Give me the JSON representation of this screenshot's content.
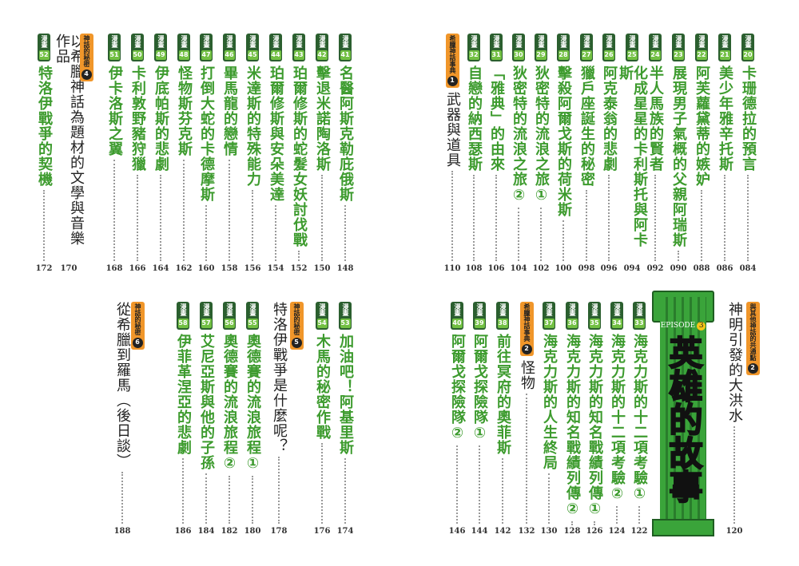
{
  "quadrants": [
    {
      "entries": [
        {
          "label": "漫畫",
          "num": "20",
          "title": "卡珊德拉的預言",
          "page": "084"
        },
        {
          "label": "漫畫",
          "num": "21",
          "title": "美少年雅辛托斯",
          "page": "086"
        },
        {
          "label": "漫畫",
          "num": "22",
          "title": "阿芙蘿黛蒂的嫉妒",
          "page": "088"
        },
        {
          "label": "漫畫",
          "num": "23",
          "title": "展現男子氣概的父親阿瑞斯",
          "page": "090"
        },
        {
          "label": "漫畫",
          "num": "24",
          "title": "半人馬族的賢者",
          "page": "092"
        },
        {
          "label": "漫畫",
          "num": "25",
          "title": "化成星星的卡利斯托與阿卡斯",
          "page": "094"
        },
        {
          "label": "漫畫",
          "num": "26",
          "title": "阿克泰翁的悲劇",
          "page": "096"
        },
        {
          "label": "漫畫",
          "num": "27",
          "title": "獵戶座誕生的秘密",
          "page": "098"
        },
        {
          "label": "漫畫",
          "num": "28",
          "title": "擊殺阿爾戈斯的荷米斯",
          "page": "100"
        },
        {
          "label": "漫畫",
          "num": "29",
          "title": "狄密特的流浪之旅①",
          "page": "102"
        },
        {
          "label": "漫畫",
          "num": "30",
          "title": "狄密特的流浪之旅②",
          "page": "104"
        },
        {
          "label": "漫畫",
          "num": "31",
          "title": "「雅典」的由來",
          "page": "106"
        },
        {
          "label": "漫畫",
          "num": "32",
          "title": "自戀的納西瑟斯",
          "page": "108"
        },
        {
          "label": "希臘神話事典",
          "num": "1",
          "title": "武器與道具",
          "page": "110"
        }
      ]
    },
    {
      "entries": [
        {
          "label": "漫畫",
          "num": "41",
          "title": "名醫阿斯克勒庇俄斯",
          "page": "148"
        },
        {
          "label": "漫畫",
          "num": "42",
          "title": "擊退米諾陶洛斯",
          "page": "150"
        },
        {
          "label": "漫畫",
          "num": "43",
          "title": "珀爾修斯的蛇髮女妖討伐戰",
          "page": "152"
        },
        {
          "label": "漫畫",
          "num": "44",
          "title": "珀爾修斯與安朵美達",
          "page": "154"
        },
        {
          "label": "漫畫",
          "num": "45",
          "title": "米達斯的特殊能力",
          "page": "156"
        },
        {
          "label": "漫畫",
          "num": "46",
          "title": "畢馬龍的戀情",
          "page": "158"
        },
        {
          "label": "漫畫",
          "num": "47",
          "title": "打倒大蛇的卡德摩斯",
          "page": "160"
        },
        {
          "label": "漫畫",
          "num": "48",
          "title": "怪物斯芬克斯",
          "page": "162"
        },
        {
          "label": "漫畫",
          "num": "49",
          "title": "伊底帕斯的悲劇",
          "page": "164"
        },
        {
          "label": "漫畫",
          "num": "50",
          "title": "卡利敦野豬狩獵",
          "page": "166"
        },
        {
          "label": "漫畫",
          "num": "51",
          "title": "伊卡洛斯之翼",
          "page": "168"
        },
        {
          "label": "神話的秘密",
          "num": "4",
          "title": "以希臘神話為題材的文學與音樂作品",
          "page": "170"
        },
        {
          "label": "漫畫",
          "num": "52",
          "title": "特洛伊戰爭的契機",
          "page": "172"
        }
      ]
    },
    {
      "entries": [
        {
          "label": "與其他神話的共通點",
          "num": "2",
          "title": "神明引發的大洪水",
          "page": "120"
        },
        {
          "label": "漫畫",
          "num": "33",
          "title": "海克力斯的十二項考驗①",
          "page": "122"
        },
        {
          "label": "漫畫",
          "num": "34",
          "title": "海克力斯的十二項考驗②",
          "page": "124"
        },
        {
          "label": "漫畫",
          "num": "35",
          "title": "海克力斯的知名戰績列傳①",
          "page": "126"
        },
        {
          "label": "漫畫",
          "num": "36",
          "title": "海克力斯的知名戰績列傳②",
          "page": "128"
        },
        {
          "label": "漫畫",
          "num": "37",
          "title": "海克力斯的人生終局",
          "page": "130"
        },
        {
          "label": "希臘神話事典",
          "num": "2",
          "title": "怪物",
          "page": "132"
        },
        {
          "label": "漫畫",
          "num": "38",
          "title": "前往冥府的奧菲斯",
          "page": "142"
        },
        {
          "label": "漫畫",
          "num": "39",
          "title": "阿爾戈探險隊①",
          "page": "144"
        },
        {
          "label": "漫畫",
          "num": "40",
          "title": "阿爾戈探險隊②",
          "page": "146"
        }
      ]
    },
    {
      "entries": [
        {
          "label": "漫畫",
          "num": "53",
          "title": "加油吧！阿基里斯",
          "page": "174"
        },
        {
          "label": "漫畫",
          "num": "54",
          "title": "木馬的秘密作戰",
          "page": "176"
        },
        {
          "label": "神話的秘密",
          "num": "5",
          "title": "特洛伊戰爭是什麼呢？",
          "page": "178"
        },
        {
          "label": "漫畫",
          "num": "55",
          "title": "奧德賽的流浪旅程①",
          "page": "180"
        },
        {
          "label": "漫畫",
          "num": "56",
          "title": "奧德賽的流浪旅程②",
          "page": "182"
        },
        {
          "label": "漫畫",
          "num": "57",
          "title": "艾尼亞斯與他的子孫",
          "page": "184"
        },
        {
          "label": "漫畫",
          "num": "58",
          "title": "伊菲革涅亞的悲劇",
          "page": "186"
        },
        {
          "label": "神話的秘密",
          "num": "6",
          "title": "從希臘到羅馬（後日談）",
          "page": "188"
        }
      ]
    }
  ],
  "episode": {
    "label": "EPISODE",
    "num": "3",
    "title": "英雄的故事"
  }
}
